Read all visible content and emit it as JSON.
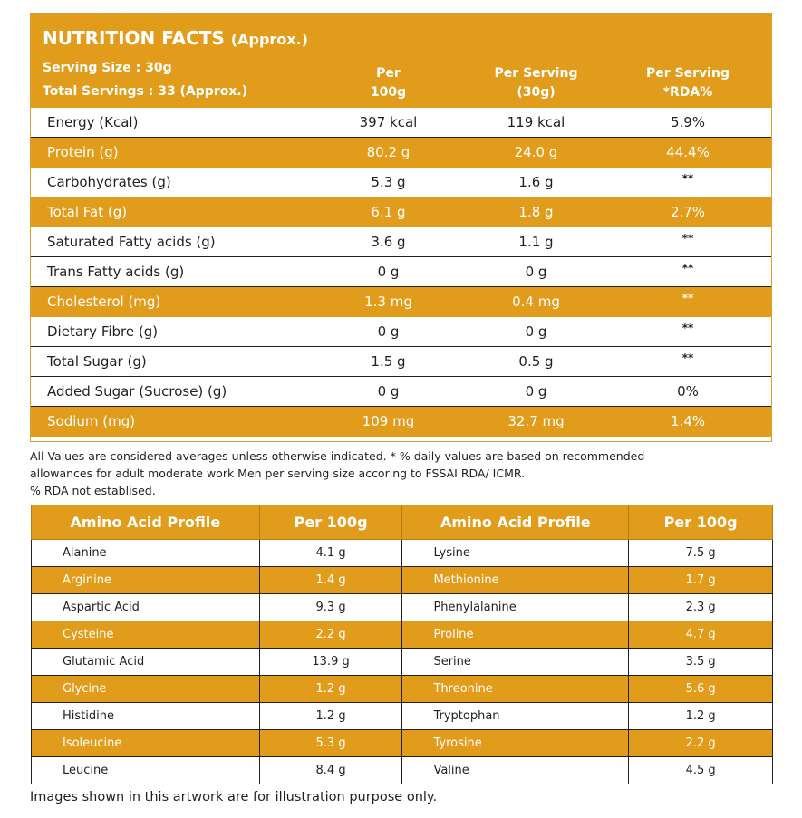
{
  "nutrition": {
    "title": "NUTRITION FACTS",
    "title_suffix": "(Approx.)",
    "serving_size": "Serving Size : 30g",
    "total_servings": "Total Servings : 33 (Approx.)",
    "col_per_100g": [
      "Per",
      "100g"
    ],
    "col_per_serving": [
      "Per Serving",
      "(30g)"
    ],
    "col_rda": [
      "Per Serving",
      "*RDA%"
    ],
    "rows": [
      {
        "name": "Energy (Kcal)",
        "per100": "397 kcal",
        "serving": "119 kcal",
        "rda": "5.9%"
      },
      {
        "name": "Protein (g)",
        "per100": "80.2 g",
        "serving": "24.0 g",
        "rda": "44.4%"
      },
      {
        "name": "Carbohydrates (g)",
        "per100": "5.3 g",
        "serving": "1.6 g",
        "rda": "**"
      },
      {
        "name": "Total Fat (g)",
        "per100": "6.1 g",
        "serving": "1.8 g",
        "rda": "2.7%"
      },
      {
        "name": "Saturated Fatty acids (g)",
        "per100": "3.6 g",
        "serving": "1.1 g",
        "rda": "**"
      },
      {
        "name": "Trans Fatty acids (g)",
        "per100": "0 g",
        "serving": "0 g",
        "rda": "**"
      },
      {
        "name": "Cholesterol (mg)",
        "per100": "1.3 mg",
        "serving": "0.4 mg",
        "rda": "**"
      },
      {
        "name": "Dietary Fibre (g)",
        "per100": "0 g",
        "serving": "0 g",
        "rda": "**"
      },
      {
        "name": "Total Sugar (g)",
        "per100": "1.5 g",
        "serving": "0.5 g",
        "rda": "**"
      },
      {
        "name": "Added Sugar (Sucrose) (g)",
        "per100": "0 g",
        "serving": "0 g",
        "rda": "0%"
      },
      {
        "name": "Sodium (mg)",
        "per100": "109 mg",
        "serving": "32.7 mg",
        "rda": "1.4%"
      }
    ]
  },
  "footnote": {
    "line1": "All Values are considered averages unless otherwise indicated. * % daily values are based on recommended",
    "line2": "allowances for adult moderate work Men per serving size accoring to FSSAI RDA/ ICMR.",
    "line3": "% RDA not establised."
  },
  "amino": {
    "header_profile": "Amino Acid Profile",
    "header_per100": "Per 100g",
    "rows": [
      {
        "left_name": "Alanine",
        "left_val": "4.1 g",
        "right_name": "Lysine",
        "right_val": "7.5 g"
      },
      {
        "left_name": "Arginine",
        "left_val": "1.4 g",
        "right_name": "Methionine",
        "right_val": "1.7 g"
      },
      {
        "left_name": "Aspartic Acid",
        "left_val": "9.3 g",
        "right_name": "Phenylalanine",
        "right_val": "2.3 g"
      },
      {
        "left_name": "Cysteine",
        "left_val": "2.2 g",
        "right_name": "Proline",
        "right_val": "4.7 g"
      },
      {
        "left_name": "Glutamic Acid",
        "left_val": "13.9 g",
        "right_name": "Serine",
        "right_val": "3.5 g"
      },
      {
        "left_name": "Glycine",
        "left_val": "1.2 g",
        "right_name": "Threonine",
        "right_val": "5.6 g"
      },
      {
        "left_name": "Histidine",
        "left_val": "1.2 g",
        "right_name": "Tryptophan",
        "right_val": "1.2 g"
      },
      {
        "left_name": "Isoleucine",
        "left_val": "5.3 g",
        "right_name": "Tyrosine",
        "right_val": "2.2 g"
      },
      {
        "left_name": "Leucine",
        "left_val": "8.4 g",
        "right_name": "Valine",
        "right_val": "4.5 g"
      }
    ]
  },
  "disclaimer": "Images shown in this artwork are for illustration purpose only.",
  "colors": {
    "accent": "#e29c1c",
    "text": "#231f20",
    "background": "#ffffff"
  }
}
